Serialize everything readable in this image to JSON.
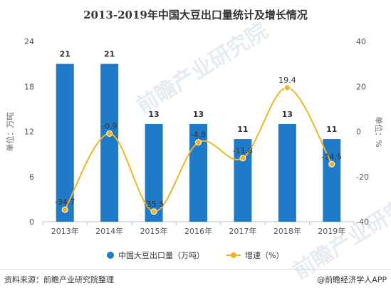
{
  "chart_data": {
    "type": "bar",
    "title": "2013-2019年中国大豆出口量统计及增长情况",
    "categories": [
      "2013年",
      "2014年",
      "2015年",
      "2016年",
      "2017年",
      "2018年",
      "2019年"
    ],
    "series": [
      {
        "name": "中国大豆出口量（万吨）",
        "type": "bar",
        "axis": "left",
        "values": [
          21,
          21,
          13,
          13,
          11,
          13,
          11
        ],
        "labels": [
          "21",
          "21",
          "13",
          "13",
          "11",
          "13",
          "11"
        ]
      },
      {
        "name": "增速（%）",
        "type": "line",
        "axis": "right",
        "values": [
          -34.7,
          -0.9,
          -35.5,
          -4.8,
          -11.8,
          19.4,
          -14.5
        ],
        "labels": [
          "-34.7",
          "-0.9",
          "-35.5",
          "-4.8",
          "-11.8",
          "19.4",
          "-14.5"
        ]
      }
    ],
    "y_left": {
      "label": "单位：万吨",
      "range": [
        0,
        24
      ],
      "ticks": [
        "0",
        "6",
        "12",
        "18",
        "24"
      ],
      "tick_values": [
        0,
        6,
        12,
        18,
        24
      ]
    },
    "y_right": {
      "label": "单位：%",
      "range": [
        -40,
        40
      ],
      "ticks": [
        "-40",
        "-20",
        "0",
        "20",
        "40"
      ],
      "tick_values": [
        -40,
        -20,
        0,
        20,
        40
      ]
    },
    "legend_position": "bottom",
    "grid": false,
    "colors": {
      "bar": "#1f7bc7",
      "line": "#f0b324"
    }
  },
  "footer": {
    "source": "资料来源：前瞻产业研究院整理",
    "brand": "@前瞻经济学人APP"
  },
  "watermark": "前瞻产业研究院"
}
